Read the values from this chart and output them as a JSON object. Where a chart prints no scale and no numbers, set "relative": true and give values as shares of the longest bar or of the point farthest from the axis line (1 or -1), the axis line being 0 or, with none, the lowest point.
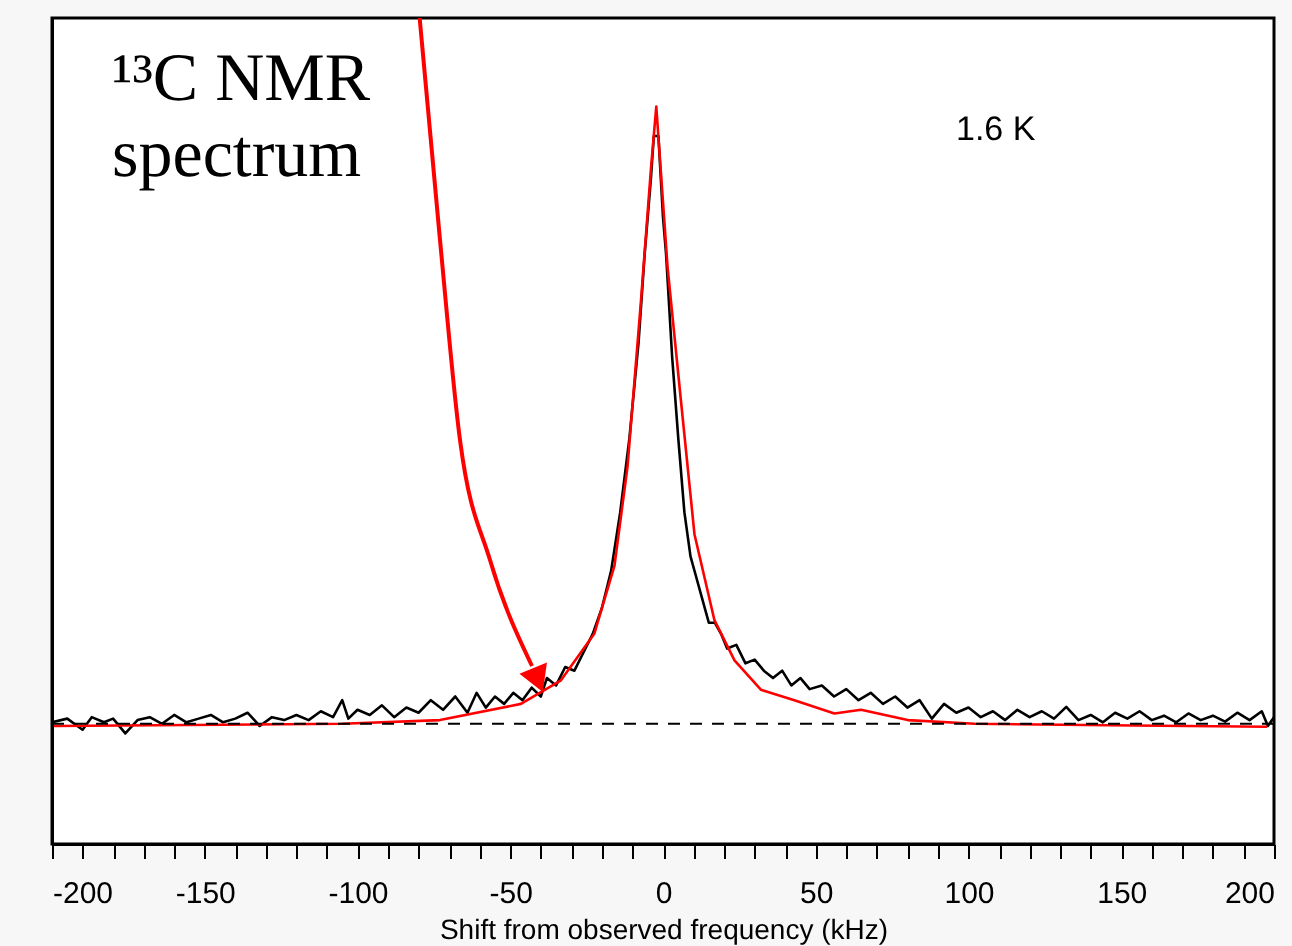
{
  "chart_data": {
    "type": "line",
    "relative": true,
    "xlabel": "Shift from observed frequency (kHz)",
    "xlim": [
      -200,
      200
    ],
    "xticks": [
      -200,
      {
        "value": -190,
        "label": null
      },
      {
        "value": -180,
        "label": null
      },
      {
        "value": -170,
        "label": null
      },
      {
        "value": -160,
        "label": null
      },
      -150,
      {
        "value": -140,
        "label": null
      },
      {
        "value": -130,
        "label": null
      },
      {
        "value": -120,
        "label": null
      },
      {
        "value": -110,
        "label": null
      },
      -100,
      {
        "value": -90,
        "label": null
      },
      {
        "value": -80,
        "label": null
      },
      {
        "value": -70,
        "label": null
      },
      {
        "value": -60,
        "label": null
      },
      -50,
      {
        "value": -40,
        "label": null
      },
      {
        "value": -30,
        "label": null
      },
      {
        "value": -20,
        "label": null
      },
      {
        "value": -10,
        "label": null
      },
      0,
      {
        "value": 10,
        "label": null
      },
      {
        "value": 20,
        "label": null
      },
      {
        "value": 30,
        "label": null
      },
      {
        "value": 40,
        "label": null
      },
      50,
      {
        "value": 60,
        "label": null
      },
      {
        "value": 70,
        "label": null
      },
      {
        "value": 80,
        "label": null
      },
      {
        "value": 90,
        "label": null
      },
      100,
      {
        "value": 110,
        "label": null
      },
      {
        "value": 120,
        "label": null
      },
      {
        "value": 130,
        "label": null
      },
      {
        "value": 140,
        "label": null
      },
      150,
      {
        "value": 160,
        "label": null
      },
      {
        "value": 170,
        "label": null
      },
      {
        "value": 180,
        "label": null
      },
      {
        "value": 190,
        "label": null
      },
      200
    ],
    "tick_labels": "x",
    "grid": false,
    "marker": "none",
    "line_style": "solid",
    "annotations": [
      "¹³C NMR spectrum",
      "1.6 K"
    ],
    "ref_lines": [
      {
        "axis": "y",
        "value": 0.163,
        "label": null,
        "color": "#000000",
        "line_style": "dashed"
      }
    ],
    "series": [
      {
        "color": "#000000",
        "x": [
          -200,
          -195,
          -190,
          -187,
          -183,
          -180,
          -176,
          -172,
          -168,
          -164,
          -160,
          -156,
          -152,
          -148,
          -144,
          -140,
          -136,
          -132,
          -128,
          -124,
          -120,
          -116,
          -112,
          -108,
          -105,
          -103,
          -100,
          -96,
          -92,
          -88,
          -84,
          -80,
          -76,
          -72,
          -68,
          -64,
          -61,
          -58,
          -55,
          -52,
          -49,
          -46,
          -43,
          -40,
          -38,
          -35,
          -32,
          -29,
          -26,
          -23,
          -20,
          -17,
          -14,
          -11,
          -8,
          -6,
          -4,
          -3,
          -1.5,
          0,
          1,
          3,
          5,
          7,
          9,
          11,
          13,
          15,
          17,
          19,
          21,
          24,
          27,
          30,
          33,
          36,
          39,
          42,
          45,
          48,
          52,
          56,
          60,
          64,
          68,
          72,
          76,
          80,
          84,
          88,
          92,
          96,
          100,
          104,
          108,
          112,
          116,
          120,
          124,
          128,
          132,
          136,
          140,
          144,
          148,
          152,
          156,
          160,
          164,
          168,
          172,
          176,
          180,
          184,
          188,
          192,
          196,
          198,
          200
        ],
        "values": [
          0.165,
          0.17,
          0.155,
          0.172,
          0.165,
          0.17,
          0.15,
          0.168,
          0.172,
          0.163,
          0.175,
          0.165,
          0.17,
          0.175,
          0.165,
          0.17,
          0.178,
          0.16,
          0.172,
          0.168,
          0.175,
          0.168,
          0.18,
          0.172,
          0.195,
          0.17,
          0.182,
          0.175,
          0.188,
          0.172,
          0.185,
          0.178,
          0.195,
          0.182,
          0.2,
          0.178,
          0.205,
          0.185,
          0.2,
          0.19,
          0.205,
          0.195,
          0.212,
          0.2,
          0.225,
          0.215,
          0.24,
          0.235,
          0.26,
          0.285,
          0.32,
          0.37,
          0.45,
          0.55,
          0.68,
          0.8,
          0.9,
          0.96,
          0.96,
          0.85,
          0.8,
          0.66,
          0.55,
          0.45,
          0.39,
          0.36,
          0.33,
          0.3,
          0.3,
          0.285,
          0.265,
          0.27,
          0.245,
          0.25,
          0.235,
          0.225,
          0.235,
          0.215,
          0.225,
          0.21,
          0.215,
          0.2,
          0.21,
          0.195,
          0.205,
          0.19,
          0.2,
          0.185,
          0.195,
          0.17,
          0.19,
          0.178,
          0.185,
          0.172,
          0.18,
          0.168,
          0.182,
          0.172,
          0.18,
          0.17,
          0.186,
          0.168,
          0.175,
          0.165,
          0.178,
          0.17,
          0.18,
          0.168,
          0.174,
          0.165,
          0.177,
          0.168,
          0.174,
          0.166,
          0.178,
          0.168,
          0.18,
          0.16,
          0.172
        ]
      },
      {
        "color": "#ff0000",
        "x": [
          -199.4,
          -105,
          -73,
          -46.5,
          -33.4,
          -22.5,
          -15.9,
          -11.6,
          -7.2,
          -3.9,
          -2.2,
          1.5,
          5.9,
          10.3,
          16.8,
          23.4,
          32.1,
          43,
          56.1,
          64.8,
          80.1,
          102,
          145.6,
          197.7
        ],
        "values": [
          0.16,
          0.163,
          0.168,
          0.19,
          0.222,
          0.285,
          0.377,
          0.512,
          0.737,
          0.918,
          1.0,
          0.782,
          0.6,
          0.42,
          0.304,
          0.249,
          0.209,
          0.195,
          0.177,
          0.182,
          0.168,
          0.163,
          0.161,
          0.159
        ]
      }
    ]
  }
}
